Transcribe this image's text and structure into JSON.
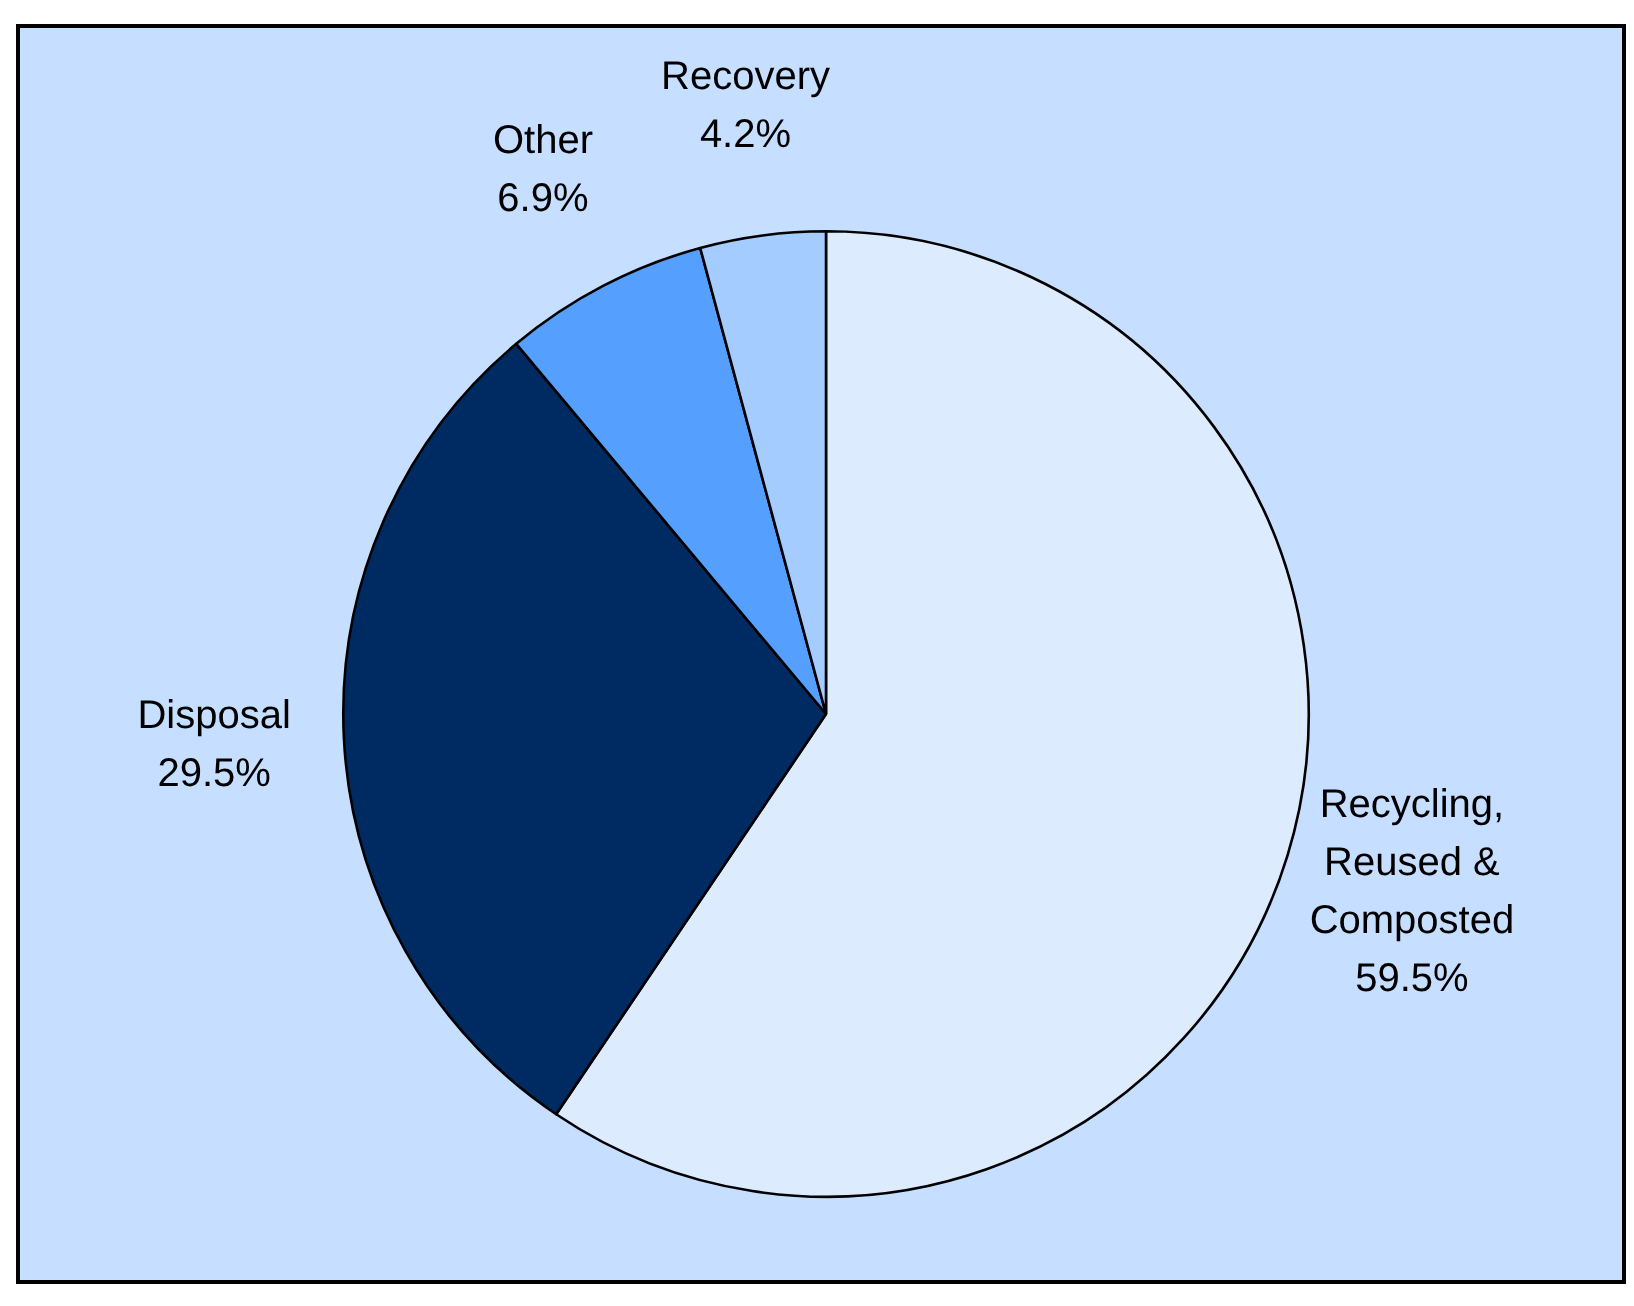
{
  "chart_data": {
    "type": "pie",
    "categories": [
      "Recycling, Reused & Composted",
      "Disposal",
      "Other",
      "Recovery"
    ],
    "values": [
      59.5,
      29.5,
      6.9,
      4.2
    ],
    "colors": [
      "#ddebff",
      "#002a62",
      "#559fff",
      "#a4ccff"
    ],
    "value_labels": [
      "59.5%",
      "29.5%",
      "6.9%",
      "4.2%"
    ],
    "legend": false
  }
}
